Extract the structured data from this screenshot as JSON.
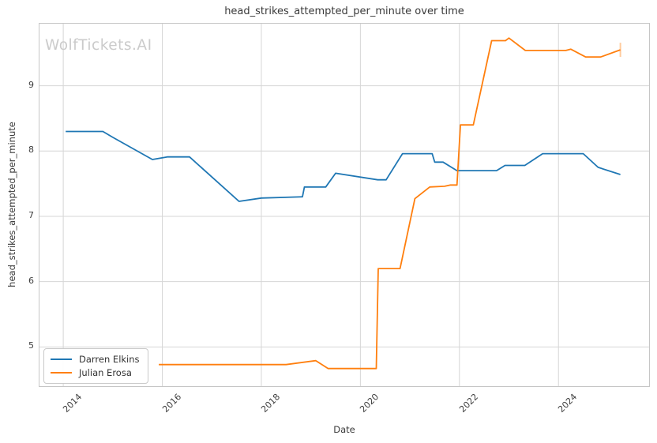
{
  "chart_data": {
    "type": "line",
    "title": "head_strikes_attempted_per_minute over time",
    "xlabel": "Date",
    "ylabel": "head_strikes_attempted_per_minute",
    "watermark": "WolfTickets.AI",
    "grid": true,
    "legend_position": "lower left",
    "xlim": [
      2013.52,
      2025.83
    ],
    "ylim": [
      4.4,
      9.95
    ],
    "x_ticks": [
      2014,
      2016,
      2018,
      2020,
      2022,
      2024
    ],
    "x_tick_labels": [
      "2014",
      "2016",
      "2018",
      "2020",
      "2022",
      "2024"
    ],
    "y_ticks": [
      5,
      6,
      7,
      8,
      9
    ],
    "y_tick_labels": [
      "5",
      "6",
      "7",
      "8",
      "9"
    ],
    "series": [
      {
        "name": "Darren Elkins",
        "color": "#1f77b4",
        "end_cap": false,
        "points": [
          [
            2014.05,
            8.3
          ],
          [
            2014.8,
            8.3
          ],
          [
            2015.0,
            8.21
          ],
          [
            2015.8,
            7.87
          ],
          [
            2016.1,
            7.91
          ],
          [
            2016.55,
            7.91
          ],
          [
            2017.55,
            7.23
          ],
          [
            2018.0,
            7.28
          ],
          [
            2018.83,
            7.3
          ],
          [
            2018.87,
            7.45
          ],
          [
            2019.3,
            7.45
          ],
          [
            2019.5,
            7.66
          ],
          [
            2020.35,
            7.56
          ],
          [
            2020.52,
            7.56
          ],
          [
            2020.85,
            7.96
          ],
          [
            2021.45,
            7.96
          ],
          [
            2021.5,
            7.83
          ],
          [
            2021.67,
            7.83
          ],
          [
            2021.95,
            7.7
          ],
          [
            2022.75,
            7.7
          ],
          [
            2022.92,
            7.78
          ],
          [
            2023.32,
            7.78
          ],
          [
            2023.68,
            7.96
          ],
          [
            2024.5,
            7.96
          ],
          [
            2024.8,
            7.75
          ],
          [
            2025.25,
            7.64
          ]
        ]
      },
      {
        "name": "Julian Erosa",
        "color": "#ff7f0e",
        "end_cap": true,
        "points": [
          [
            2015.93,
            4.73
          ],
          [
            2018.5,
            4.73
          ],
          [
            2019.1,
            4.79
          ],
          [
            2019.35,
            4.67
          ],
          [
            2020.32,
            4.67
          ],
          [
            2020.36,
            6.2
          ],
          [
            2020.8,
            6.2
          ],
          [
            2021.1,
            7.27
          ],
          [
            2021.4,
            7.45
          ],
          [
            2021.7,
            7.46
          ],
          [
            2021.82,
            7.48
          ],
          [
            2021.95,
            7.48
          ],
          [
            2022.02,
            8.4
          ],
          [
            2022.28,
            8.4
          ],
          [
            2022.65,
            9.69
          ],
          [
            2022.93,
            9.69
          ],
          [
            2023.0,
            9.73
          ],
          [
            2023.33,
            9.54
          ],
          [
            2024.15,
            9.54
          ],
          [
            2024.25,
            9.56
          ],
          [
            2024.55,
            9.44
          ],
          [
            2024.85,
            9.44
          ],
          [
            2025.25,
            9.55
          ]
        ]
      }
    ]
  }
}
